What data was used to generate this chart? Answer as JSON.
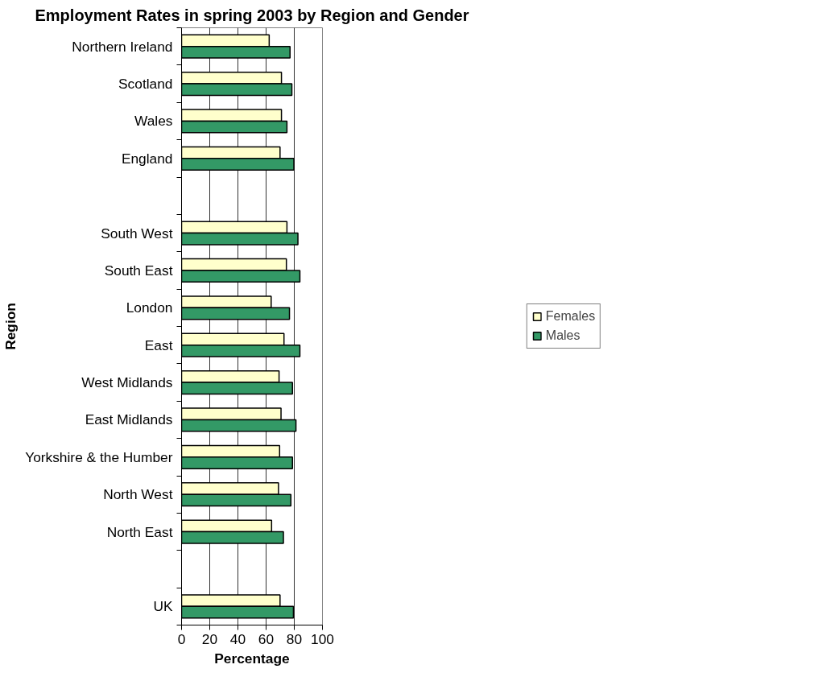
{
  "chart_data": {
    "type": "bar",
    "orientation": "horizontal",
    "title": "Employment Rates in spring 2003 by Region and Gender",
    "xlabel": "Percentage",
    "ylabel": "Region",
    "categories": [
      "Northern Ireland",
      "Scotland",
      "Wales",
      "England",
      null,
      "South West",
      "South East",
      "London",
      "East",
      "West Midlands",
      "East Midlands",
      "Yorkshire & the Humber",
      "North West",
      "North East",
      null,
      "UK"
    ],
    "series": [
      {
        "name": "Females",
        "color": "#ffffcc",
        "values": [
          62.2,
          70.9,
          70.9,
          69.9,
          null,
          74.8,
          74.4,
          63.6,
          72.7,
          69.2,
          70.6,
          69.6,
          68.8,
          63.9,
          null,
          69.9
        ]
      },
      {
        "name": "Males",
        "color": "#339966",
        "values": [
          77.0,
          78.3,
          74.8,
          79.7,
          null,
          82.6,
          84.0,
          76.6,
          84.0,
          78.7,
          81.2,
          78.7,
          77.6,
          72.3,
          null,
          79.4
        ]
      }
    ],
    "xlim": [
      0,
      100
    ],
    "xticks": [
      0,
      20,
      40,
      60,
      80,
      100
    ],
    "grid": "x",
    "legend": "right"
  }
}
